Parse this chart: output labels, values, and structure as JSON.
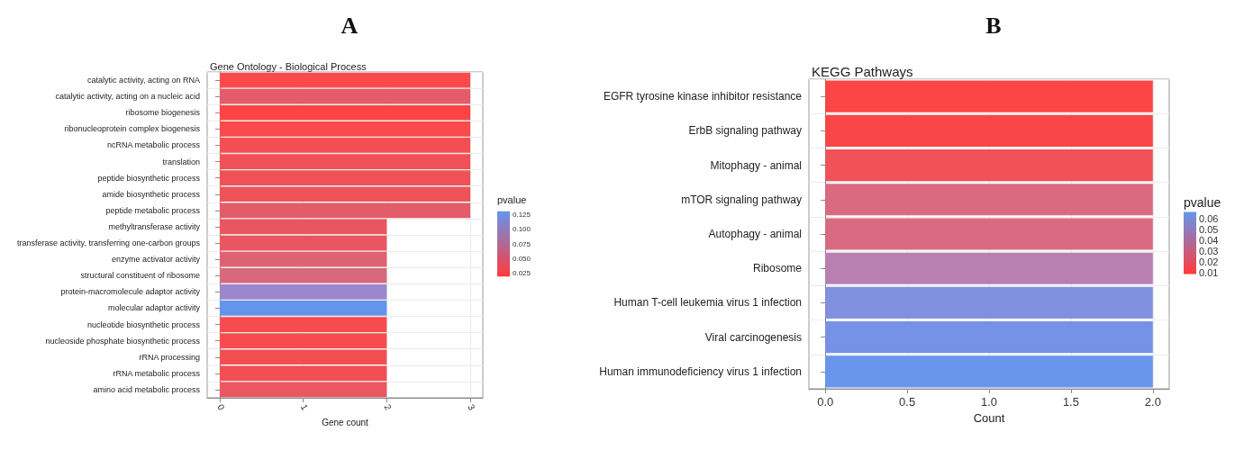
{
  "chart_data": [
    {
      "type": "bar",
      "orientation": "horizontal",
      "title": "A",
      "subtitle": "Gene Ontology - Biological Process",
      "xlabel": "Gene count",
      "clabel": "pvalue",
      "clim": [
        0.02,
        0.13
      ],
      "cticks": [
        0.025,
        {
          "value": 0.05,
          "label": "0.050"
        },
        0.075,
        {
          "value": 0.1,
          "label": "0.100"
        },
        0.125
      ],
      "xlim": [
        -0.15,
        3.15
      ],
      "xticks": [
        0,
        1,
        2,
        3
      ],
      "grid": true,
      "categories": [
        "catalytic activity, acting on RNA",
        "catalytic activity, acting on a nucleic acid",
        "ribosome biogenesis",
        "ribonucleoprotein complex biogenesis",
        "ncRNA metabolic process",
        "translation",
        "peptide biosynthetic process",
        "amide biosynthetic process",
        "peptide metabolic process",
        "methyltransferase activity",
        "transferase activity, transferring one-carbon groups",
        "enzyme activator activity",
        "structural constituent of ribosome",
        "protein-macromolecule adaptor activity",
        "molecular adaptor activity",
        "nucleotide biosynthetic process",
        "nucleoside phosphate biosynthetic process",
        "rRNA processing",
        "rRNA metabolic process",
        "amino acid metabolic process"
      ],
      "values": [
        3,
        3,
        3,
        3,
        3,
        3,
        3,
        3,
        3,
        2,
        2,
        2,
        2,
        2,
        2,
        2,
        2,
        2,
        2,
        2
      ],
      "colors": [
        "#fc4a4a",
        "#e45c6a",
        "#fc4444",
        "#fa4a4a",
        "#f54e52",
        "#f15056",
        "#ee5257",
        "#ec545a",
        "#e45c6a",
        "#ea5660",
        "#ea5660",
        "#df6272",
        "#d8687c",
        "#9b88cc",
        "#6495ed",
        "#f74c4f",
        "#f74c4f",
        "#f34e52",
        "#f34e52",
        "#eb5660"
      ]
    },
    {
      "type": "bar",
      "orientation": "horizontal",
      "title": "B",
      "subtitle": "KEGG Pathways",
      "xlabel": "Count",
      "clabel": "pvalue",
      "clim": [
        0.009,
        0.066
      ],
      "cticks": [
        0.01,
        0.02,
        0.03,
        0.04,
        0.05,
        0.06
      ],
      "xlim": [
        -0.1,
        2.1
      ],
      "xticks": [
        {
          "value": 0,
          "label": "0.0"
        },
        0.5,
        {
          "value": 1,
          "label": "1.0"
        },
        1.5,
        {
          "value": 2,
          "label": "2.0"
        }
      ],
      "grid": true,
      "categories": [
        "EGFR tyrosine kinase inhibitor resistance",
        "ErbB signaling pathway",
        "Mitophagy - animal",
        "mTOR signaling pathway",
        "Autophagy - animal",
        "Ribosome",
        "Human T-cell leukemia virus 1 infection",
        "Viral carcinogenesis",
        "Human immunodeficiency virus 1 infection"
      ],
      "values": [
        2,
        2,
        2,
        2,
        2,
        2,
        2,
        2,
        2
      ],
      "colors": [
        "#fc4545",
        "#fa4646",
        "#f05258",
        "#d96a80",
        "#d86b82",
        "#b87fb0",
        "#8290e0",
        "#7592e6",
        "#6995ec"
      ]
    }
  ]
}
